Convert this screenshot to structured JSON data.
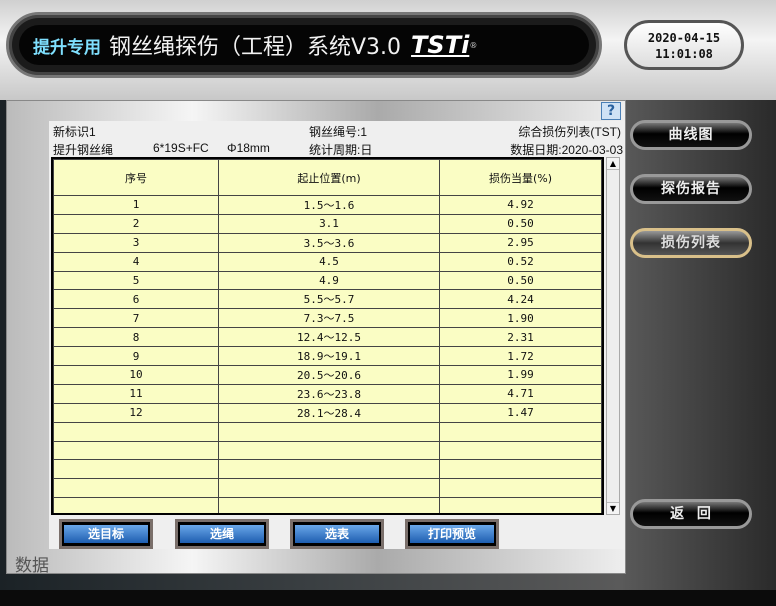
{
  "header": {
    "tag": "提升专用",
    "title": "钢丝绳探伤（工程）系统V3.0",
    "logo": "TSTi",
    "reg": "®",
    "date": "2020-04-15",
    "time": "11:01:08"
  },
  "info": {
    "id": "新标识1",
    "rope_no": "钢丝绳号:1",
    "report": "综合损伤列表(TST)",
    "rope_type": "提升钢丝绳",
    "structure": "6*19S+FC",
    "diameter": "Φ18mm",
    "period": "统计周期:日",
    "data_date": "数据日期:2020-03-03",
    "help": "?"
  },
  "table": {
    "headers": [
      "序号",
      "起止位置(m)",
      "损伤当量(%)"
    ],
    "rows": [
      [
        "1",
        "1.5～1.6",
        "4.92"
      ],
      [
        "2",
        "3.1",
        "0.50"
      ],
      [
        "3",
        "3.5～3.6",
        "2.95"
      ],
      [
        "4",
        "4.5",
        "0.52"
      ],
      [
        "5",
        "4.9",
        "0.50"
      ],
      [
        "6",
        "5.5～5.7",
        "4.24"
      ],
      [
        "7",
        "7.3～7.5",
        "1.90"
      ],
      [
        "8",
        "12.4～12.5",
        "2.31"
      ],
      [
        "9",
        "18.9～19.1",
        "1.72"
      ],
      [
        "10",
        "20.5～20.6",
        "1.99"
      ],
      [
        "11",
        "23.6～23.8",
        "4.71"
      ],
      [
        "12",
        "28.1～28.4",
        "1.47"
      ]
    ],
    "empty_rows": 5
  },
  "buttons": {
    "select_target": "选目标",
    "select_rope": "选绳",
    "select_table": "选表",
    "print_preview": "打印预览"
  },
  "panel_label": "数据",
  "side": {
    "curve": "曲线图",
    "report": "探伤报告",
    "damage_list": "损伤列表",
    "back": "返  回",
    "active": "damage_list"
  }
}
